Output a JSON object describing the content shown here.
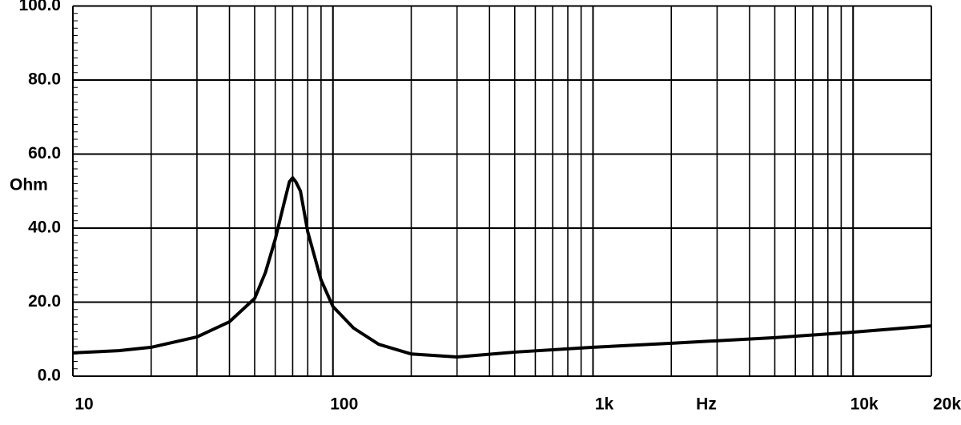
{
  "chart_data": {
    "type": "line",
    "y_label": "Ohm",
    "x_label": "Hz",
    "log_x": true,
    "grid": true,
    "x": [
      10,
      15,
      20,
      30,
      40,
      50,
      55,
      60,
      65,
      68,
      70,
      72,
      75,
      80,
      90,
      100,
      120,
      150,
      200,
      300,
      500,
      1000,
      2000,
      5000,
      10000,
      20000
    ],
    "series": [
      {
        "color": "#000000",
        "values": [
          6.3,
          6.9,
          7.8,
          10.6,
          14.7,
          21,
          28,
          37,
          47,
          52.5,
          53.6,
          52.5,
          50,
          39,
          26,
          18.8,
          13,
          8.6,
          6,
          5.2,
          6.5,
          7.8,
          8.9,
          10.4,
          11.9,
          13.6
        ]
      }
    ],
    "xlim": [
      10,
      20000
    ],
    "ylim": [
      0,
      100
    ],
    "xticks": [
      10,
      100,
      {
        "value": 1000,
        "label": "1k"
      },
      {
        "value": 10000,
        "label": "10k"
      },
      {
        "value": 20000,
        "label": "20k"
      }
    ],
    "yticks": [
      {
        "value": 0,
        "label": "0.0"
      },
      {
        "value": 20,
        "label": "20.0"
      },
      {
        "value": 40,
        "label": "40.0"
      },
      {
        "value": 60,
        "label": "60.0"
      },
      {
        "value": 80,
        "label": "80.0"
      },
      {
        "value": 100,
        "label": "100.0"
      }
    ]
  }
}
